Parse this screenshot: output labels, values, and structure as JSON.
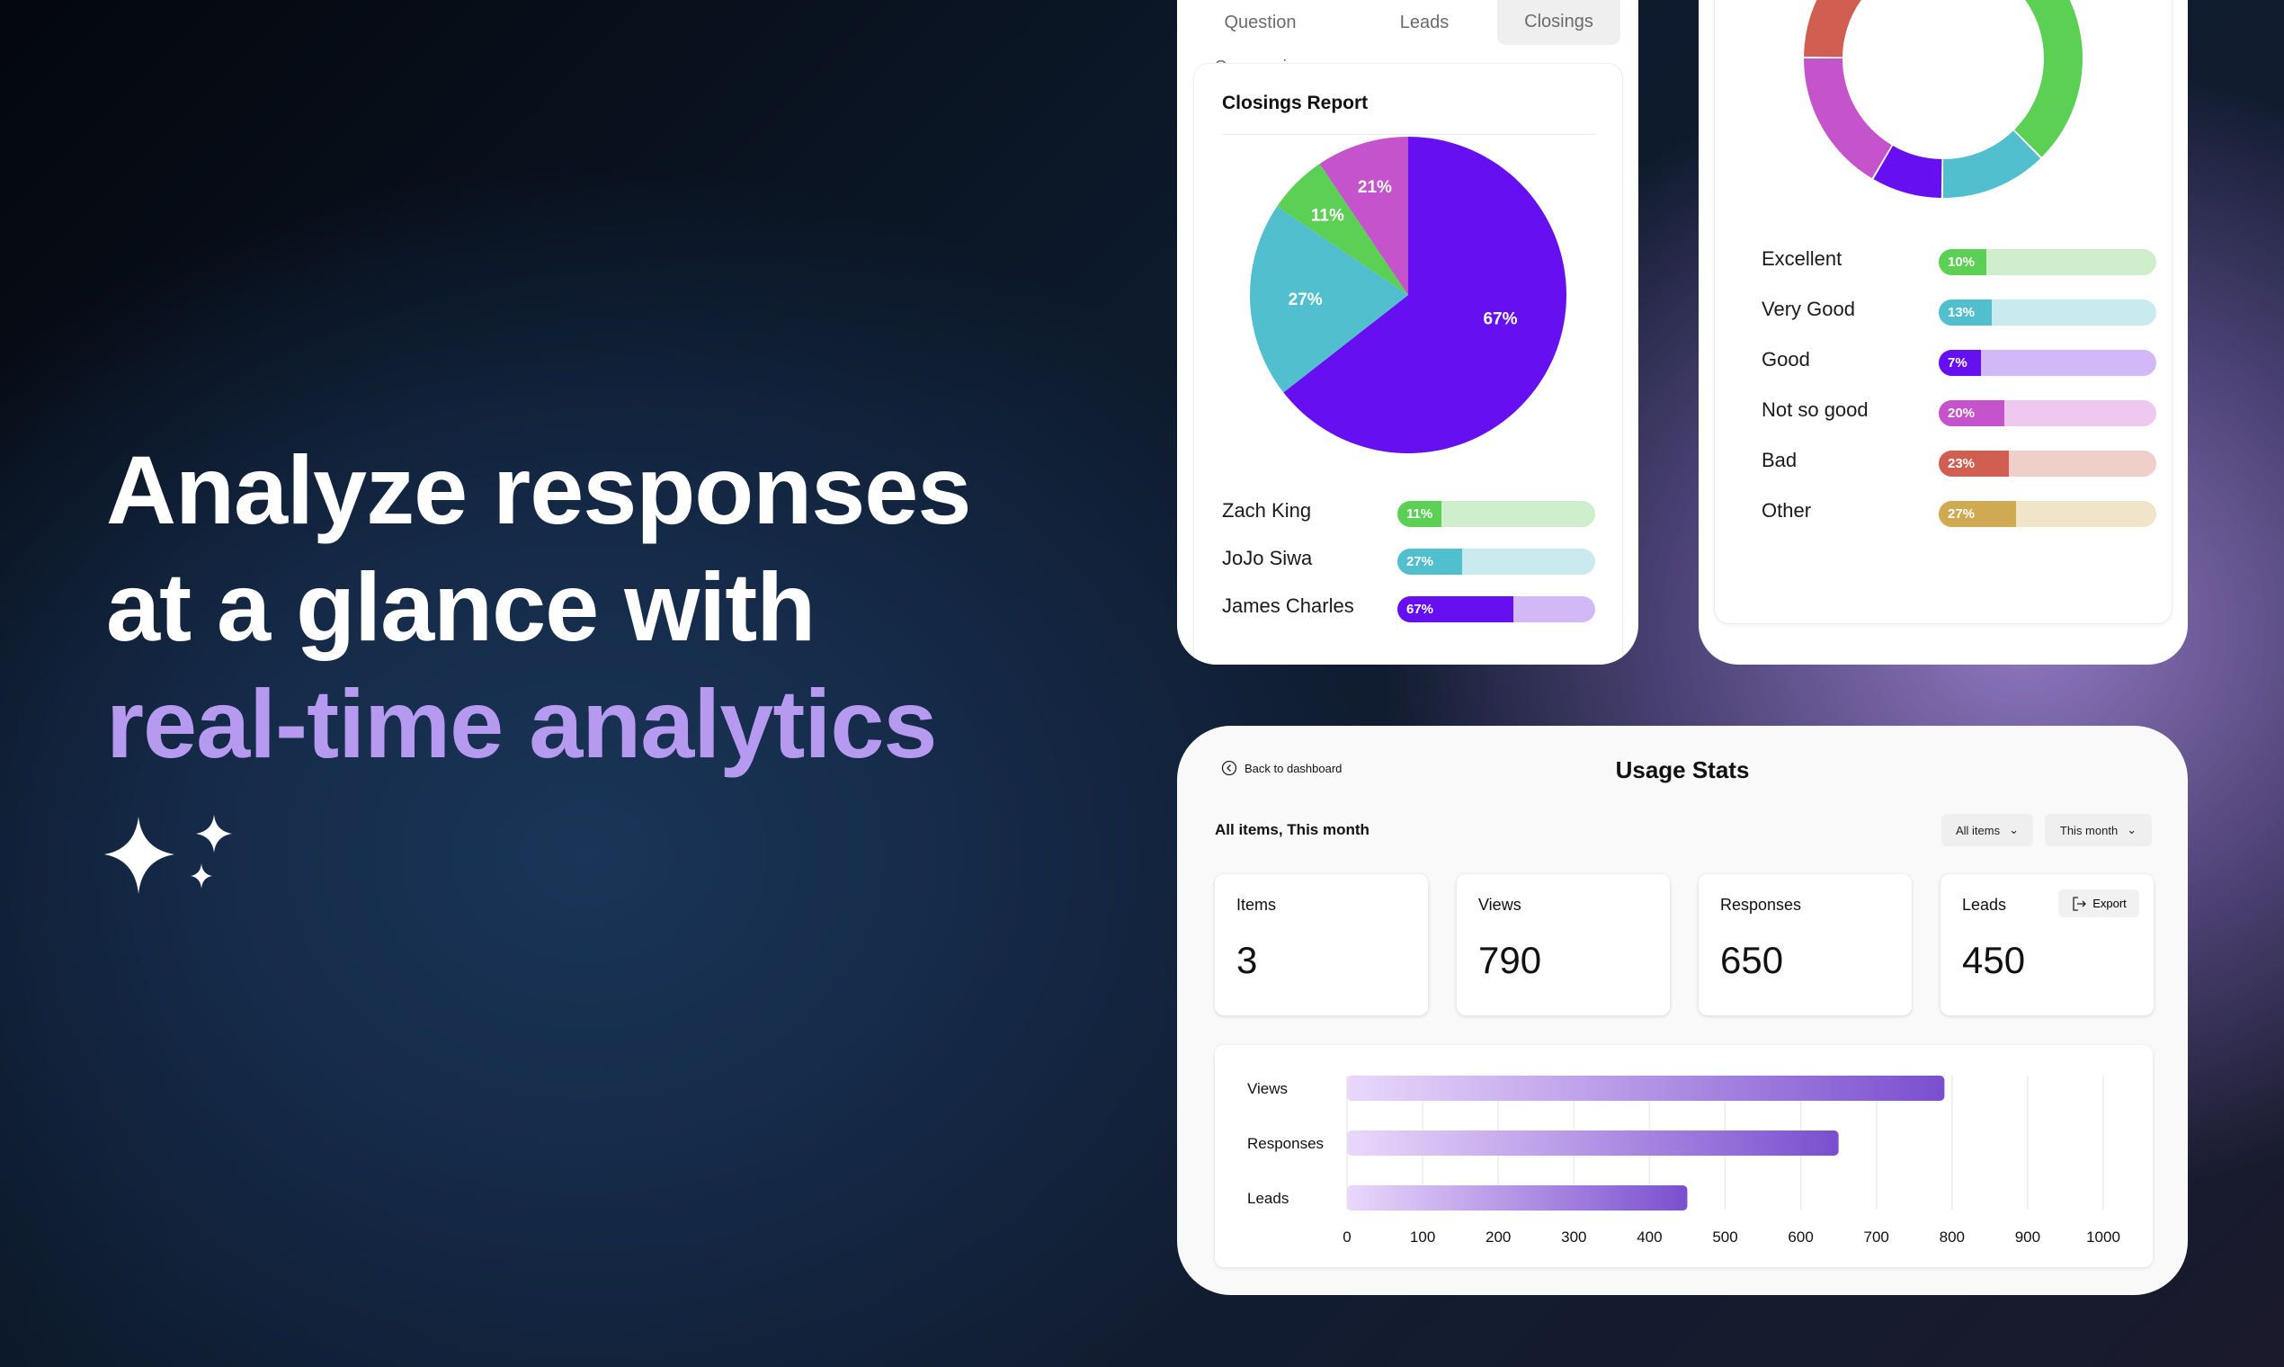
{
  "hero": {
    "line1": "Analyze responses",
    "line2": "at a glance with",
    "line3": "real-time analytics",
    "icon": "sparkles-icon"
  },
  "closings_panel": {
    "tabs": [
      {
        "label": "Question Summaries",
        "active": false
      },
      {
        "label": "Leads",
        "active": false
      },
      {
        "label": "Closings",
        "active": true
      }
    ],
    "title": "Closings Report",
    "pie": [
      {
        "label": "67%",
        "value": 67,
        "color": "#6610f2"
      },
      {
        "label": "27%",
        "value": 27,
        "color": "#52bfcf"
      },
      {
        "label": "11%",
        "value": 11,
        "color": "#5ccf55"
      },
      {
        "label": "21%",
        "value": 21,
        "color": "#c453cc"
      }
    ],
    "rows": [
      {
        "name": "Zach King",
        "pct": 11,
        "label": "11%",
        "color": "#5ccf55",
        "bg": "#cfeecb"
      },
      {
        "name": "JoJo Siwa",
        "pct": 27,
        "label": "27%",
        "color": "#52bfcf",
        "bg": "#c9ebef"
      },
      {
        "name": "James Charles",
        "pct": 67,
        "label": "67%",
        "color": "#6610f2",
        "bg": "#d2b8f7"
      }
    ]
  },
  "rating_panel": {
    "rows": [
      {
        "name": "Excellent",
        "pct": 10,
        "label": "10%",
        "color": "#5ccf55",
        "bg": "#cfeecb"
      },
      {
        "name": "Very Good",
        "pct": 13,
        "label": "13%",
        "color": "#52bfcf",
        "bg": "#c9ebef"
      },
      {
        "name": "Good",
        "pct": 7,
        "label": "7%",
        "color": "#6610f2",
        "bg": "#d2b8f7"
      },
      {
        "name": "Not so good",
        "pct": 20,
        "label": "20%",
        "color": "#c453cc",
        "bg": "#eec8ef"
      },
      {
        "name": "Bad",
        "pct": 23,
        "label": "23%",
        "color": "#d05f52",
        "bg": "#f0cec9"
      },
      {
        "name": "Other",
        "pct": 27,
        "label": "27%",
        "color": "#d0aa52",
        "bg": "#f0e5c9"
      }
    ]
  },
  "usage": {
    "back_label": "Back to dashboard",
    "title": "Usage Stats",
    "subtitle": "All items, This month",
    "filter_items": "All items",
    "filter_period": "This month",
    "export_label": "Export",
    "stats": [
      {
        "label": "Items",
        "value": "3"
      },
      {
        "label": "Views",
        "value": "790"
      },
      {
        "label": "Responses",
        "value": "650"
      },
      {
        "label": "Leads",
        "value": "450"
      }
    ]
  },
  "chart_data": {
    "type": "bar",
    "orientation": "horizontal",
    "categories": [
      "Views",
      "Responses",
      "Leads"
    ],
    "values": [
      790,
      650,
      450
    ],
    "xlim": [
      0,
      1000
    ],
    "xticks": [
      "0",
      "100",
      "200",
      "300",
      "400",
      "500",
      "600",
      "700",
      "800",
      "900",
      "1000"
    ],
    "grid": true
  }
}
